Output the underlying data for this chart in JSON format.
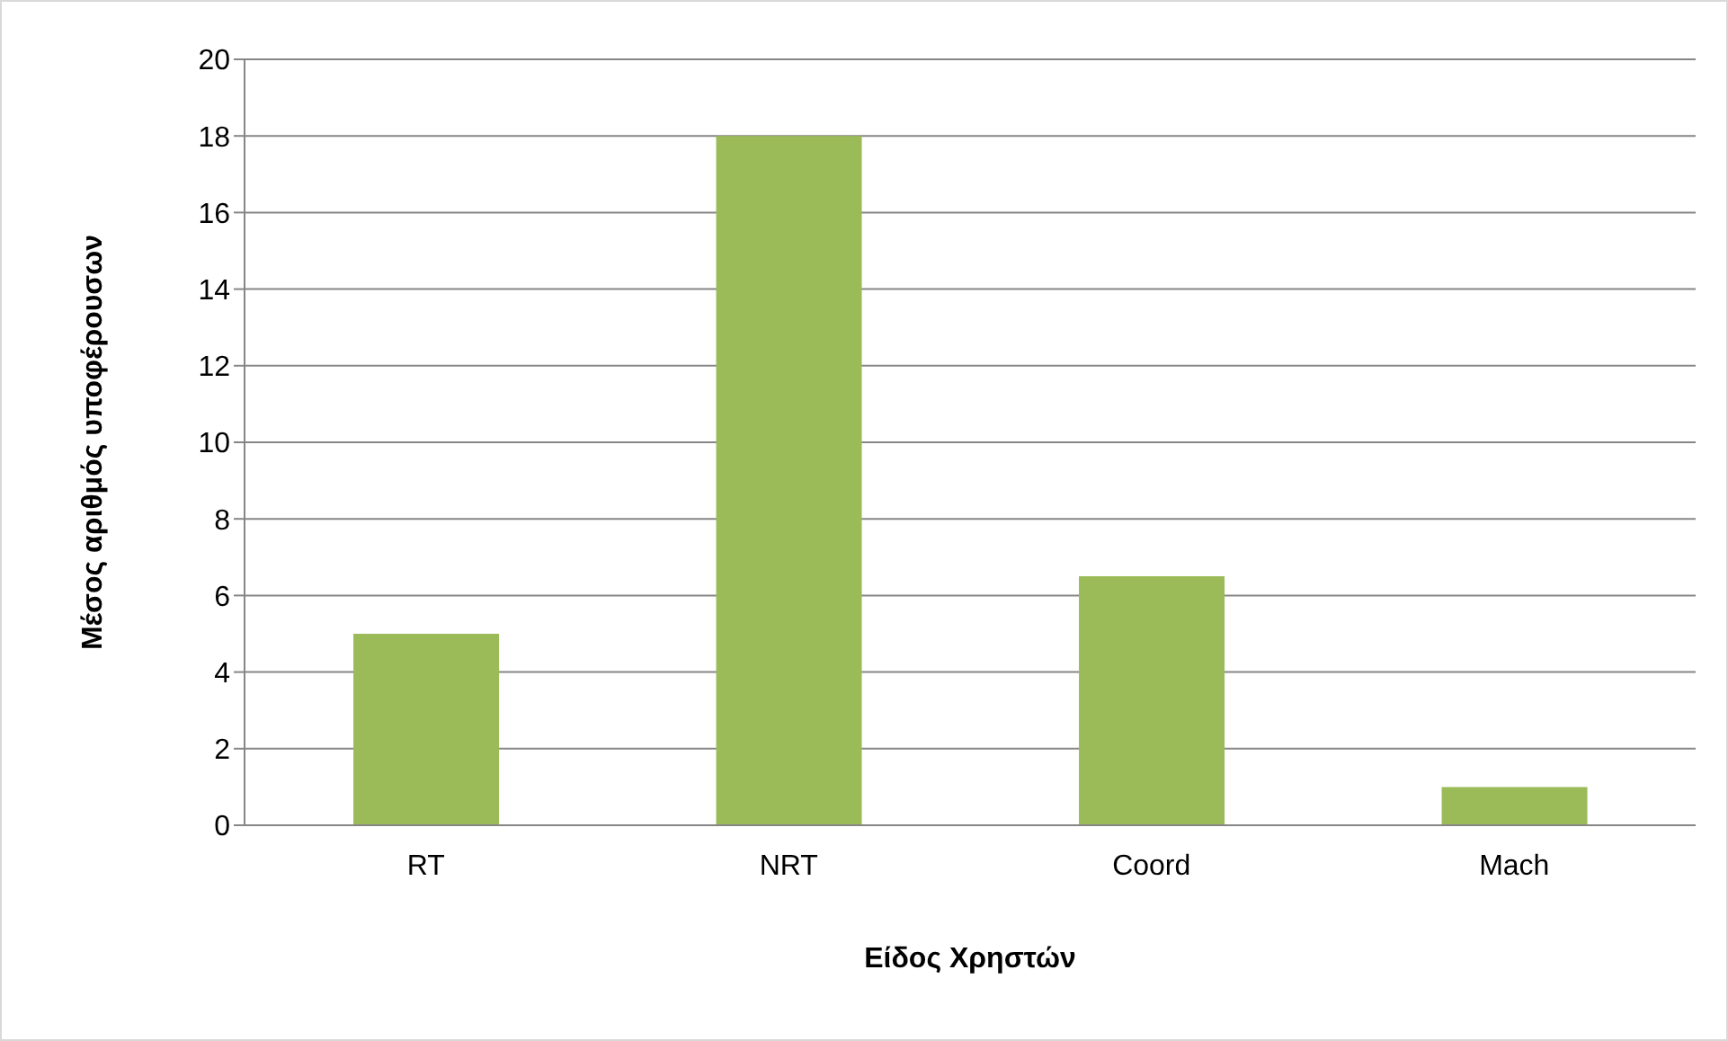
{
  "chart_data": {
    "type": "bar",
    "xlabel": "Είδος Χρηστών",
    "ylabel": "Μέσος αριθμός υποφέρουσων",
    "categories": [
      "RT",
      "NRT",
      "Coord",
      "Mach"
    ],
    "values": [
      5,
      18,
      6.5,
      1
    ],
    "color": "#9bbb59",
    "ylim": [
      0,
      20
    ],
    "yticks": [
      0,
      2,
      4,
      6,
      8,
      10,
      12,
      14,
      16,
      18,
      20
    ],
    "grid": "y"
  }
}
